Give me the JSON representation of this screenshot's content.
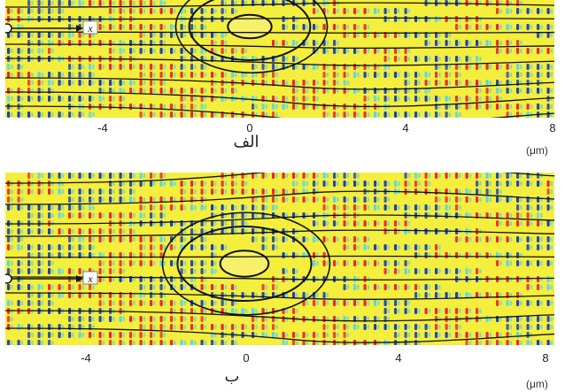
{
  "colors": {
    "background": "#f4ee3c",
    "background_alt": "#f7f06a",
    "red": "#e8262a",
    "blue": "#1f3fb3",
    "cyan": "#54d6ee",
    "contour": "#111111"
  },
  "panels": [
    {
      "id": "a",
      "sublabel": "الف",
      "x_ticks": [
        "-4",
        "0",
        "4",
        "8"
      ],
      "unit": "(μm)",
      "marker_label": "x"
    },
    {
      "id": "b",
      "sublabel": "ب",
      "x_ticks": [
        "-4",
        "0",
        "4",
        "8"
      ],
      "unit": "(μm)",
      "marker_label": "x"
    }
  ]
}
